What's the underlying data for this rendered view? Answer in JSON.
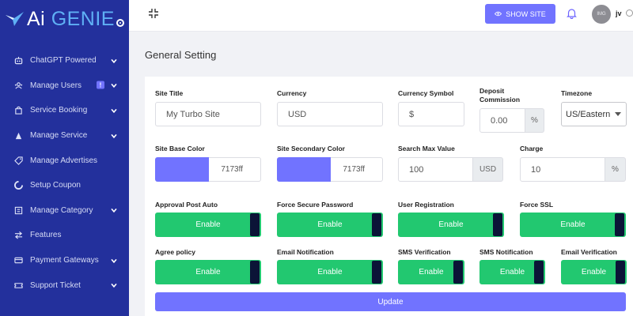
{
  "brand": {
    "name_prefix": "Ai",
    "name_main": "GENIE"
  },
  "sidebar": {
    "items": [
      {
        "label": "ChatGPT Powered",
        "icon": "robot-icon",
        "has_chevron": true
      },
      {
        "label": "Manage Users",
        "icon": "users-icon",
        "has_chevron": true,
        "badge": "!"
      },
      {
        "label": "Service Booking",
        "icon": "bag-icon",
        "has_chevron": true
      },
      {
        "label": "Manage Service",
        "icon": "service-icon",
        "has_chevron": true
      },
      {
        "label": "Manage Advertises",
        "icon": "tag-icon",
        "has_chevron": false
      },
      {
        "label": "Setup Coupon",
        "icon": "coupon-icon",
        "has_chevron": false
      },
      {
        "label": "Manage Category",
        "icon": "category-icon",
        "has_chevron": true
      },
      {
        "label": "Features",
        "icon": "swap-icon",
        "has_chevron": false
      },
      {
        "label": "Payment Gateways",
        "icon": "card-icon",
        "has_chevron": true
      },
      {
        "label": "Support Ticket",
        "icon": "ticket-icon",
        "has_chevron": true
      }
    ]
  },
  "topbar": {
    "show_site_label": "SHOW SITE",
    "avatar_text": "IMG",
    "user_name": "jv"
  },
  "page": {
    "title": "General Setting"
  },
  "form": {
    "site_title": {
      "label": "Site Title",
      "value": "My Turbo Site"
    },
    "currency": {
      "label": "Currency",
      "value": "USD"
    },
    "currency_symbol": {
      "label": "Currency Symbol",
      "value": "$"
    },
    "deposit_commission": {
      "label_line1": "Deposit",
      "label_line2": "Commission",
      "value": "0.00",
      "addon": "%"
    },
    "timezone": {
      "label": "Timezone",
      "value": "US/Eastern"
    },
    "site_base_color": {
      "label": "Site Base Color",
      "value": "7173ff",
      "color": "#7173ff"
    },
    "site_secondary_color": {
      "label": "Site Secondary Color",
      "value": "7173ff",
      "color": "#7173ff"
    },
    "search_max_value": {
      "label": "Search Max Value",
      "value": "100",
      "addon": "USD"
    },
    "charge": {
      "label": "Charge",
      "value": "10",
      "addon": "%"
    },
    "toggles": [
      {
        "label": "Approval Post Auto",
        "state": "Enable"
      },
      {
        "label": "Force Secure Password",
        "state": "Enable"
      },
      {
        "label": "User Registration",
        "state": "Enable"
      },
      {
        "label": "Force SSL",
        "state": "Enable"
      },
      {
        "label": "Agree policy",
        "state": "Enable"
      },
      {
        "label": "Email Notification",
        "state": "Enable"
      },
      {
        "label": "SMS Verification",
        "state": "Enable"
      },
      {
        "label": "SMS Notification",
        "state": "Enable"
      },
      {
        "label": "Email Verification",
        "state": "Enable"
      }
    ],
    "update_label": "Update"
  },
  "colors": {
    "sidebar": "#23309c",
    "accent": "#7173ff",
    "toggle_on": "#22c870",
    "toggle_knob": "#0b1437"
  }
}
